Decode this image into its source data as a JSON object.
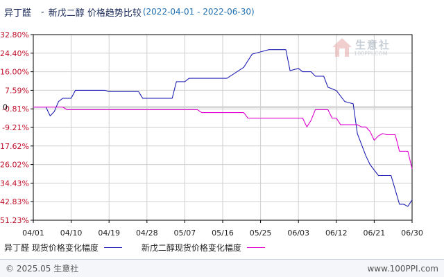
{
  "header": {
    "product": "异丁醛",
    "separator": "-",
    "compare": "新戊二醇 价格趋势比较",
    "range": "(2022-04-01 - 2022-06-30)"
  },
  "watermark": {
    "text": "生意社",
    "url": "100PPI.COM"
  },
  "footer": {
    "copyright": "© 2025.05 生意社",
    "url": "www.100PPI.com"
  },
  "colors": {
    "series1": "#1f1fb4",
    "series2": "#e000d0",
    "grid": "#cfcfcf",
    "axis": "#000000"
  },
  "chart_data": {
    "type": "line",
    "x_ticks": [
      "04/01",
      "04/10",
      "04/19",
      "04/28",
      "05/07",
      "05/16",
      "05/25",
      "06/03",
      "06/12",
      "06/21",
      "06/30"
    ],
    "y_ticks": [
      "32.80%",
      "24.40%",
      "16.00%",
      "7.59%",
      "-0.81%",
      "-9.21%",
      "-17.62%",
      "-26.02%",
      "-34.43%",
      "-42.83%",
      "-51.23%"
    ],
    "y_zero_label": "0",
    "ylim": [
      -51.23,
      32.8
    ],
    "x_range": [
      "2022-04-01",
      "2022-06-30"
    ],
    "grid": true,
    "legend_position": "bottom",
    "series": [
      {
        "name": "异丁醛 现货价格变化幅度",
        "points": [
          [
            "2022-04-01",
            0
          ],
          [
            "2022-04-04",
            0
          ],
          [
            "2022-04-05",
            -4
          ],
          [
            "2022-04-06",
            -2
          ],
          [
            "2022-04-07",
            2.5
          ],
          [
            "2022-04-08",
            4
          ],
          [
            "2022-04-10",
            4
          ],
          [
            "2022-04-11",
            7.6
          ],
          [
            "2022-04-18",
            7.6
          ],
          [
            "2022-04-19",
            7
          ],
          [
            "2022-04-26",
            7
          ],
          [
            "2022-04-27",
            4
          ],
          [
            "2022-05-04",
            4
          ],
          [
            "2022-05-05",
            11.5
          ],
          [
            "2022-05-07",
            11.5
          ],
          [
            "2022-05-08",
            13
          ],
          [
            "2022-05-17",
            13
          ],
          [
            "2022-05-19",
            15.5
          ],
          [
            "2022-05-21",
            18
          ],
          [
            "2022-05-23",
            24
          ],
          [
            "2022-05-25",
            25
          ],
          [
            "2022-05-27",
            26
          ],
          [
            "2022-05-31",
            26
          ],
          [
            "2022-06-01",
            16.5
          ],
          [
            "2022-06-03",
            17.5
          ],
          [
            "2022-06-04",
            16
          ],
          [
            "2022-06-06",
            16
          ],
          [
            "2022-06-07",
            14
          ],
          [
            "2022-06-09",
            14
          ],
          [
            "2022-06-10",
            9
          ],
          [
            "2022-06-12",
            7.5
          ],
          [
            "2022-06-14",
            2.5
          ],
          [
            "2022-06-16",
            1.5
          ],
          [
            "2022-06-17",
            -12
          ],
          [
            "2022-06-19",
            -22
          ],
          [
            "2022-06-20",
            -26
          ],
          [
            "2022-06-22",
            -31
          ],
          [
            "2022-06-25",
            -31
          ],
          [
            "2022-06-27",
            -44
          ],
          [
            "2022-06-28",
            -44
          ],
          [
            "2022-06-29",
            -45
          ],
          [
            "2022-06-30",
            -42
          ]
        ]
      },
      {
        "name": "新戊二醇现货价格变化幅度",
        "points": [
          [
            "2022-04-01",
            0
          ],
          [
            "2022-04-08",
            0
          ],
          [
            "2022-04-09",
            -1.2
          ],
          [
            "2022-05-10",
            -1.2
          ],
          [
            "2022-05-11",
            -2.5
          ],
          [
            "2022-05-21",
            -2.5
          ],
          [
            "2022-05-22",
            -5
          ],
          [
            "2022-06-04",
            -5
          ],
          [
            "2022-06-05",
            -9
          ],
          [
            "2022-06-06",
            -6
          ],
          [
            "2022-06-07",
            -1.2
          ],
          [
            "2022-06-10",
            -1.2
          ],
          [
            "2022-06-11",
            -5
          ],
          [
            "2022-06-12",
            -5
          ],
          [
            "2022-06-13",
            -8
          ],
          [
            "2022-06-17",
            -8
          ],
          [
            "2022-06-18",
            -9
          ],
          [
            "2022-06-19",
            -9
          ],
          [
            "2022-06-20",
            -11
          ],
          [
            "2022-06-21",
            -15
          ],
          [
            "2022-06-22",
            -13
          ],
          [
            "2022-06-23",
            -12
          ],
          [
            "2022-06-24",
            -12.5
          ],
          [
            "2022-06-26",
            -12.5
          ],
          [
            "2022-06-27",
            -20
          ],
          [
            "2022-06-29",
            -20
          ],
          [
            "2022-06-30",
            -28
          ]
        ]
      }
    ]
  }
}
